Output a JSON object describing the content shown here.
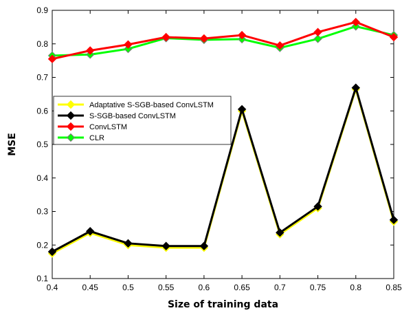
{
  "chart_data": {
    "type": "line",
    "title": "",
    "xlabel": "Size of training data",
    "ylabel": "MSE",
    "x": [
      0.4,
      0.45,
      0.5,
      0.55,
      0.6,
      0.65,
      0.7,
      0.75,
      0.8,
      0.85
    ],
    "xticks": [
      "0.4",
      "0.45",
      "0.5",
      "0.55",
      "0.6",
      "0.65",
      "0.7",
      "0.75",
      "0.8",
      "0.85"
    ],
    "yticks": [
      "0.1",
      "0.2",
      "0.3",
      "0.4",
      "0.5",
      "0.6",
      "0.7",
      "0.8",
      "0.9"
    ],
    "xlim": [
      0.4,
      0.85
    ],
    "ylim": [
      0.1,
      0.9
    ],
    "grid": false,
    "legend_position": "upper-left",
    "series": [
      {
        "name": "Adaptative S-SGB-based ConvLSTM",
        "color": "#ffff00",
        "marker": "diamond",
        "values": [
          0.175,
          0.236,
          0.2,
          0.192,
          0.192,
          0.6,
          0.232,
          0.31,
          0.665,
          0.27
        ]
      },
      {
        "name": "S-SGB-based ConvLSTM",
        "color": "#000000",
        "marker": "diamond",
        "values": [
          0.18,
          0.241,
          0.205,
          0.197,
          0.197,
          0.605,
          0.237,
          0.315,
          0.669,
          0.275
        ]
      },
      {
        "name": "ConvLSTM",
        "color": "#ff0000",
        "marker": "diamond",
        "values": [
          0.755,
          0.78,
          0.798,
          0.82,
          0.816,
          0.826,
          0.795,
          0.835,
          0.865,
          0.82
        ]
      },
      {
        "name": "CLR",
        "color": "#00ff00",
        "marker": "diamond",
        "values": [
          0.765,
          0.768,
          0.785,
          0.817,
          0.812,
          0.814,
          0.788,
          0.815,
          0.852,
          0.826
        ]
      }
    ]
  }
}
